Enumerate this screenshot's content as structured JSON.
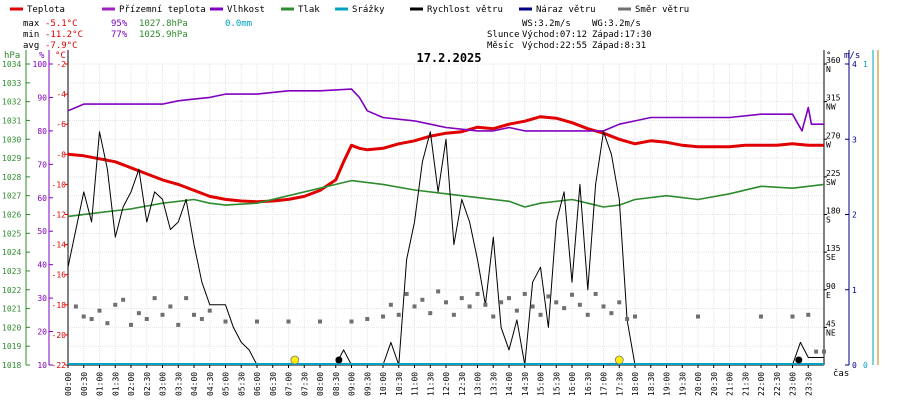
{
  "legend": [
    {
      "label": "Teplota",
      "color": "#e00000"
    },
    {
      "label": "Přízemní teplota",
      "color": "#a020c0"
    },
    {
      "label": "Vlhkost",
      "color": "#8000c0"
    },
    {
      "label": "Tlak",
      "color": "#2e8b2e"
    },
    {
      "label": "Srážky",
      "color": "#00a0c0"
    },
    {
      "label": "Rychlost větru",
      "color": "#000000"
    },
    {
      "label": "Náraz větru",
      "color": "#000080"
    },
    {
      "label": "Směr větru",
      "color": "#707070"
    }
  ],
  "stats": {
    "max_label": "max",
    "max_temp": "-5.1°C",
    "max_hum": "95%",
    "max_press": "1027.8hPa",
    "max_rain": "0.0mm",
    "min_label": "min",
    "min_temp": "-11.2°C",
    "min_hum": "77%",
    "min_press": "1025.9hPa",
    "avg_label": "avg",
    "avg_temp": "-7.9°C"
  },
  "wind_info": {
    "ws": "WS:3.2m/s",
    "wg": "WG:3.2m/s"
  },
  "sun": {
    "label": "Slunce",
    "rise": "Východ:07:12",
    "set": "Západ:17:30"
  },
  "moon": {
    "label": "Měsíc",
    "rise": "Východ:22:55",
    "set": "Západ:8:31"
  },
  "colors": {
    "rain_axis": "#00a0c0",
    "wind_axis": "#000080",
    "gust_axis": "#c08000",
    "sun_marker": "#ffee00"
  },
  "chart_data": {
    "type": "line",
    "title": "17.2.2025",
    "xlabel": "čas",
    "x_ticks": [
      "00:00",
      "00:30",
      "01:00",
      "01:30",
      "02:00",
      "02:30",
      "03:00",
      "03:30",
      "04:00",
      "04:30",
      "05:00",
      "05:30",
      "06:00",
      "06:30",
      "07:00",
      "07:30",
      "08:00",
      "08:30",
      "09:00",
      "09:30",
      "10:00",
      "10:30",
      "11:00",
      "11:30",
      "12:00",
      "12:30",
      "13:00",
      "13:30",
      "14:00",
      "14:30",
      "15:00",
      "15:30",
      "16:00",
      "16:30",
      "17:00",
      "17:30",
      "18:00",
      "18:30",
      "19:00",
      "19:30",
      "20:00",
      "20:30",
      "21:00",
      "21:30",
      "22:00",
      "22:30",
      "23:00",
      "23:30"
    ],
    "axes": {
      "pressure": {
        "label": "hPa",
        "range": [
          1018,
          1034
        ],
        "ticks": [
          1018,
          1019,
          1020,
          1021,
          1022,
          1023,
          1024,
          1025,
          1026,
          1027,
          1028,
          1029,
          1030,
          1031,
          1032,
          1033,
          1034
        ]
      },
      "humidity": {
        "label": "%",
        "range": [
          10,
          100
        ],
        "ticks": [
          10,
          20,
          30,
          40,
          50,
          60,
          70,
          80,
          90,
          100
        ]
      },
      "temperature": {
        "label": "°C",
        "range": [
          -22,
          -2
        ],
        "ticks": [
          -22,
          -20,
          -18,
          -16,
          -14,
          -12,
          -10,
          -8,
          -6,
          -4,
          -2
        ]
      },
      "direction": {
        "label": "°",
        "range": [
          0,
          360
        ],
        "ticks": [
          {
            "v": 45,
            "t": "45",
            "c": "NE"
          },
          {
            "v": 90,
            "t": "90",
            "c": "E"
          },
          {
            "v": 135,
            "t": "135",
            "c": "SE"
          },
          {
            "v": 180,
            "t": "180",
            "c": "S"
          },
          {
            "v": 225,
            "t": "225",
            "c": "SW"
          },
          {
            "v": 270,
            "t": "270",
            "c": "W"
          },
          {
            "v": 315,
            "t": "315",
            "c": "NW"
          },
          {
            "v": 360,
            "t": "360",
            "c": "N"
          }
        ]
      },
      "wind": {
        "label": "m/s",
        "range": [
          0,
          4
        ],
        "ticks": [
          0,
          1,
          2,
          3,
          4
        ]
      },
      "rain": {
        "label": "",
        "range": [
          0,
          1
        ],
        "ticks": [
          0,
          1
        ]
      }
    },
    "grid": true,
    "series": [
      {
        "name": "Teplota",
        "axis": "temperature",
        "color": "#e00000",
        "points": [
          [
            0,
            -8
          ],
          [
            0.5,
            -8.1
          ],
          [
            1,
            -8.3
          ],
          [
            1.5,
            -8.5
          ],
          [
            2,
            -8.9
          ],
          [
            2.5,
            -9.3
          ],
          [
            3,
            -9.7
          ],
          [
            3.5,
            -10
          ],
          [
            4,
            -10.4
          ],
          [
            4.5,
            -10.8
          ],
          [
            5,
            -11
          ],
          [
            5.5,
            -11.1
          ],
          [
            6,
            -11.15
          ],
          [
            6.5,
            -11.1
          ],
          [
            7,
            -11
          ],
          [
            7.5,
            -10.8
          ],
          [
            8,
            -10.4
          ],
          [
            8.5,
            -9.7
          ],
          [
            8.75,
            -8.5
          ],
          [
            9,
            -7.4
          ],
          [
            9.25,
            -7.6
          ],
          [
            9.5,
            -7.7
          ],
          [
            10,
            -7.6
          ],
          [
            10.5,
            -7.3
          ],
          [
            11,
            -7.1
          ],
          [
            11.5,
            -6.8
          ],
          [
            12,
            -6.6
          ],
          [
            12.5,
            -6.5
          ],
          [
            13,
            -6.2
          ],
          [
            13.5,
            -6.3
          ],
          [
            14,
            -6
          ],
          [
            14.5,
            -5.8
          ],
          [
            15,
            -5.5
          ],
          [
            15.5,
            -5.6
          ],
          [
            16,
            -5.9
          ],
          [
            16.5,
            -6.3
          ],
          [
            17,
            -6.6
          ],
          [
            17.5,
            -7
          ],
          [
            18,
            -7.3
          ],
          [
            18.5,
            -7.1
          ],
          [
            19,
            -7.2
          ],
          [
            19.5,
            -7.4
          ],
          [
            20,
            -7.5
          ],
          [
            21,
            -7.5
          ],
          [
            21.5,
            -7.4
          ],
          [
            22,
            -7.4
          ],
          [
            22.5,
            -7.4
          ],
          [
            23,
            -7.3
          ],
          [
            23.5,
            -7.4
          ],
          [
            24,
            -7.4
          ]
        ]
      },
      {
        "name": "Vlhkost",
        "axis": "humidity",
        "color": "#8000c0",
        "points": [
          [
            0,
            86
          ],
          [
            0.5,
            88
          ],
          [
            1,
            88
          ],
          [
            2,
            88
          ],
          [
            3,
            88
          ],
          [
            3.5,
            89
          ],
          [
            4,
            89.5
          ],
          [
            4.5,
            90
          ],
          [
            5,
            91
          ],
          [
            6,
            91
          ],
          [
            7,
            92
          ],
          [
            8,
            92
          ],
          [
            9,
            92.5
          ],
          [
            9.25,
            90
          ],
          [
            9.5,
            86
          ],
          [
            10,
            84
          ],
          [
            11,
            83
          ],
          [
            11.5,
            82
          ],
          [
            12,
            81
          ],
          [
            13,
            80
          ],
          [
            13.5,
            80
          ],
          [
            14,
            81
          ],
          [
            14.5,
            80
          ],
          [
            15,
            80
          ],
          [
            16,
            80
          ],
          [
            16.5,
            80
          ],
          [
            17,
            80
          ],
          [
            17.5,
            82
          ],
          [
            18,
            83
          ],
          [
            18.5,
            84
          ],
          [
            19,
            84
          ],
          [
            20,
            84
          ],
          [
            21,
            84
          ],
          [
            22,
            85
          ],
          [
            23,
            85
          ],
          [
            23.3,
            80
          ],
          [
            23.5,
            87
          ],
          [
            23.6,
            82
          ],
          [
            24,
            82
          ]
        ]
      },
      {
        "name": "Tlak",
        "axis": "pressure",
        "color": "#2e8b2e",
        "points": [
          [
            0,
            1025.9
          ],
          [
            1,
            1026.1
          ],
          [
            2,
            1026.3
          ],
          [
            3,
            1026.6
          ],
          [
            4,
            1026.8
          ],
          [
            4.5,
            1026.6
          ],
          [
            5,
            1026.5
          ],
          [
            6,
            1026.6
          ],
          [
            7,
            1027
          ],
          [
            8,
            1027.4
          ],
          [
            8.5,
            1027.6
          ],
          [
            9,
            1027.8
          ],
          [
            10,
            1027.6
          ],
          [
            11,
            1027.3
          ],
          [
            12,
            1027.1
          ],
          [
            13,
            1026.9
          ],
          [
            14,
            1026.7
          ],
          [
            14.5,
            1026.4
          ],
          [
            15,
            1026.6
          ],
          [
            16,
            1026.8
          ],
          [
            16.5,
            1026.6
          ],
          [
            17,
            1026.4
          ],
          [
            17.5,
            1026.5
          ],
          [
            18,
            1026.8
          ],
          [
            19,
            1027
          ],
          [
            20,
            1026.8
          ],
          [
            21,
            1027.1
          ],
          [
            22,
            1027.5
          ],
          [
            23,
            1027.4
          ],
          [
            24,
            1027.6
          ]
        ]
      },
      {
        "name": "Rychlost větru",
        "axis": "wind",
        "color": "#000000",
        "points": [
          [
            0,
            1.3
          ],
          [
            0.25,
            1.8
          ],
          [
            0.5,
            2.3
          ],
          [
            0.75,
            1.9
          ],
          [
            1,
            3.1
          ],
          [
            1.25,
            2.6
          ],
          [
            1.5,
            1.7
          ],
          [
            1.75,
            2.1
          ],
          [
            2,
            2.3
          ],
          [
            2.25,
            2.6
          ],
          [
            2.5,
            1.9
          ],
          [
            2.75,
            2.3
          ],
          [
            3,
            2.2
          ],
          [
            3.25,
            1.8
          ],
          [
            3.5,
            1.9
          ],
          [
            3.75,
            2.2
          ],
          [
            4,
            1.6
          ],
          [
            4.25,
            1.1
          ],
          [
            4.5,
            0.8
          ],
          [
            5,
            0.8
          ],
          [
            5.25,
            0.5
          ],
          [
            5.5,
            0.3
          ],
          [
            5.75,
            0.2
          ],
          [
            6,
            0
          ],
          [
            8.5,
            0
          ],
          [
            8.75,
            0.2
          ],
          [
            9,
            0
          ],
          [
            10,
            0
          ],
          [
            10.25,
            0.3
          ],
          [
            10.5,
            0
          ],
          [
            10.75,
            1.4
          ],
          [
            11,
            1.9
          ],
          [
            11.25,
            2.7
          ],
          [
            11.5,
            3.1
          ],
          [
            11.75,
            2.3
          ],
          [
            12,
            3
          ],
          [
            12.25,
            1.6
          ],
          [
            12.5,
            2.2
          ],
          [
            12.75,
            1.9
          ],
          [
            13,
            1.4
          ],
          [
            13.25,
            0.8
          ],
          [
            13.5,
            1.7
          ],
          [
            13.75,
            0.5
          ],
          [
            14,
            0.2
          ],
          [
            14.25,
            0.6
          ],
          [
            14.5,
            0
          ],
          [
            14.75,
            1.1
          ],
          [
            15,
            1.3
          ],
          [
            15.25,
            0.5
          ],
          [
            15.5,
            1.9
          ],
          [
            15.75,
            2.3
          ],
          [
            16,
            1.1
          ],
          [
            16.25,
            2.4
          ],
          [
            16.5,
            1
          ],
          [
            16.75,
            2.4
          ],
          [
            17,
            3.1
          ],
          [
            17.25,
            2.8
          ],
          [
            17.5,
            2.2
          ],
          [
            17.75,
            0.6
          ],
          [
            18,
            0
          ],
          [
            23,
            0
          ],
          [
            23.25,
            0.3
          ],
          [
            23.5,
            0.1
          ],
          [
            24,
            0.1
          ]
        ]
      },
      {
        "name": "Směr větru",
        "axis": "direction",
        "color": "#707070",
        "points": [
          [
            0.25,
            70
          ],
          [
            0.5,
            58
          ],
          [
            0.75,
            55
          ],
          [
            1,
            65
          ],
          [
            1.25,
            50
          ],
          [
            1.5,
            72
          ],
          [
            1.75,
            78
          ],
          [
            2,
            48
          ],
          [
            2.25,
            62
          ],
          [
            2.5,
            55
          ],
          [
            2.75,
            80
          ],
          [
            3,
            60
          ],
          [
            3.25,
            70
          ],
          [
            3.5,
            48
          ],
          [
            3.75,
            80
          ],
          [
            4,
            60
          ],
          [
            4.25,
            55
          ],
          [
            4.5,
            65
          ],
          [
            5,
            52
          ],
          [
            6,
            52
          ],
          [
            7,
            52
          ],
          [
            8,
            52
          ],
          [
            9,
            52
          ],
          [
            9.5,
            55
          ],
          [
            10,
            58
          ],
          [
            10.25,
            72
          ],
          [
            10.5,
            60
          ],
          [
            10.75,
            85
          ],
          [
            11,
            70
          ],
          [
            11.25,
            78
          ],
          [
            11.5,
            62
          ],
          [
            11.75,
            88
          ],
          [
            12,
            75
          ],
          [
            12.25,
            60
          ],
          [
            12.5,
            80
          ],
          [
            12.75,
            70
          ],
          [
            13,
            85
          ],
          [
            13.25,
            72
          ],
          [
            13.5,
            58
          ],
          [
            13.75,
            75
          ],
          [
            14,
            80
          ],
          [
            14.25,
            65
          ],
          [
            14.5,
            85
          ],
          [
            14.75,
            70
          ],
          [
            15,
            60
          ],
          [
            15.25,
            82
          ],
          [
            15.5,
            75
          ],
          [
            15.75,
            68
          ],
          [
            16,
            84
          ],
          [
            16.25,
            72
          ],
          [
            16.5,
            60
          ],
          [
            16.75,
            85
          ],
          [
            17,
            70
          ],
          [
            17.25,
            62
          ],
          [
            17.5,
            75
          ],
          [
            17.75,
            55
          ],
          [
            18,
            58
          ],
          [
            20,
            58
          ],
          [
            22,
            58
          ],
          [
            23,
            58
          ],
          [
            23.5,
            60
          ],
          [
            23.75,
            16
          ],
          [
            24,
            16
          ]
        ]
      }
    ],
    "moon_markers": [
      8.6,
      23.2
    ],
    "sun_markers": [
      7.2,
      17.5
    ]
  }
}
